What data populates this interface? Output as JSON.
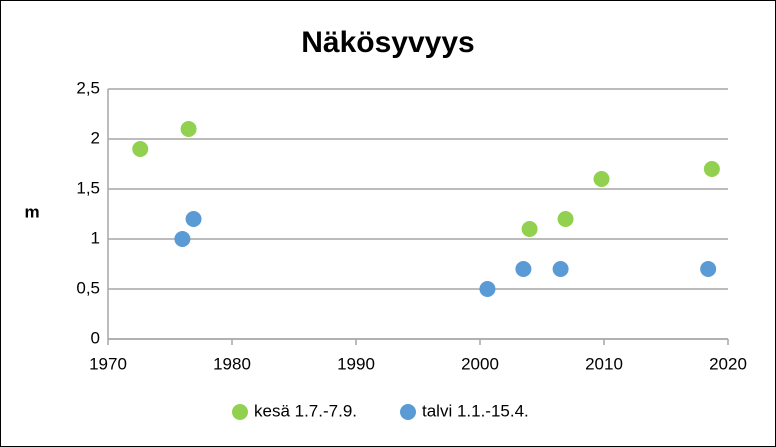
{
  "chart_data": {
    "type": "scatter",
    "title": "Näkösyvyys",
    "y_label": "m",
    "series": [
      {
        "name": "kesä 1.7.-7.9.",
        "color": "#92d050",
        "x": [
          1972.6,
          1976.5,
          2004.0,
          2006.9,
          2009.8,
          2018.7
        ],
        "values": [
          1.9,
          2.1,
          1.1,
          1.2,
          1.6,
          1.7
        ]
      },
      {
        "name": "talvi 1.1.-15.4.",
        "color": "#5b9bd5",
        "x": [
          1976.0,
          1976.9,
          2000.6,
          2003.5,
          2006.5,
          2018.4
        ],
        "values": [
          1.0,
          1.2,
          0.5,
          0.7,
          0.7,
          0.7
        ]
      }
    ],
    "xlim": [
      1970,
      2020
    ],
    "xticks": [
      1970,
      1980,
      1990,
      2000,
      2010,
      2020
    ],
    "ylim": [
      0,
      2.5
    ],
    "yticks": [
      0,
      {
        "value": 0.5,
        "label": "0,5"
      },
      1,
      {
        "value": 1.5,
        "label": "1,5"
      },
      2,
      {
        "value": 2.5,
        "label": "2,5"
      }
    ],
    "grid": true,
    "legend": "bottom"
  }
}
